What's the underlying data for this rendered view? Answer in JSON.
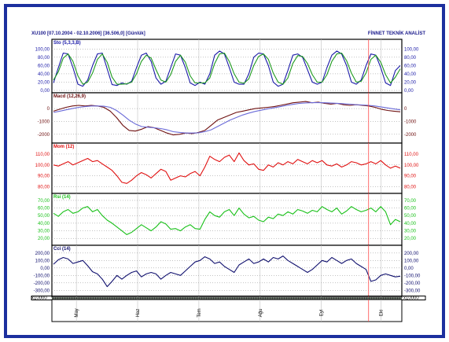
{
  "header": {
    "left": "XU100  [07.10.2004 - 02.10.2006]  [36.506,0]  [Günlük]",
    "right": "FİNNET TEKNİK ANALİST"
  },
  "colors": {
    "frame": "#1c2f9e",
    "sto_k": "#1a1aa8",
    "sto_d": "#1e9a1e",
    "macd": "#6e1010",
    "macd_signal": "#6a6ad8",
    "mom": "#e01010",
    "rsi": "#18c018",
    "cci": "#10106e",
    "vline": "#ff4a4a",
    "grid": "#c0c0c0"
  },
  "x_axis": {
    "months": [
      "May",
      "Haz",
      "Tem",
      "Ağu",
      "Eyl",
      "Eki"
    ],
    "month_positions": [
      0.07,
      0.245,
      0.42,
      0.595,
      0.77,
      0.94
    ],
    "marker_position": 0.905,
    "scale_label": "x10000"
  },
  "chart_data": [
    {
      "type": "line",
      "title": "Sto (5,3,3,B)",
      "ylim": [
        0,
        110
      ],
      "ticks": [
        {
          "v": 0,
          "l": "0,00"
        },
        {
          "v": 20,
          "l": "20,00"
        },
        {
          "v": 40,
          "l": "40,00"
        },
        {
          "v": 60,
          "l": "60,00"
        },
        {
          "v": 80,
          "l": "80,00"
        },
        {
          "v": 100,
          "l": "100,00"
        }
      ],
      "series": [
        {
          "key": "k",
          "color": "#1a1aa8",
          "values": [
            18,
            55,
            90,
            88,
            55,
            15,
            10,
            25,
            60,
            88,
            90,
            52,
            14,
            12,
            18,
            15,
            22,
            55,
            85,
            90,
            70,
            30,
            15,
            22,
            55,
            88,
            85,
            55,
            18,
            12,
            20,
            15,
            40,
            85,
            95,
            88,
            55,
            20,
            15,
            15,
            40,
            80,
            90,
            88,
            60,
            20,
            10,
            15,
            48,
            85,
            88,
            80,
            50,
            20,
            15,
            20,
            55,
            85,
            95,
            88,
            60,
            20,
            15,
            25,
            60,
            88,
            85,
            55,
            18,
            12,
            48,
            60
          ]
        },
        {
          "key": "d",
          "color": "#1e9a1e",
          "values": [
            25,
            45,
            78,
            88,
            70,
            35,
            15,
            20,
            42,
            75,
            88,
            68,
            32,
            15,
            15,
            16,
            20,
            40,
            70,
            85,
            78,
            50,
            25,
            20,
            38,
            70,
            85,
            68,
            35,
            18,
            18,
            18,
            30,
            65,
            88,
            90,
            70,
            40,
            20,
            17,
            28,
            60,
            82,
            88,
            75,
            42,
            20,
            15,
            30,
            65,
            84,
            82,
            65,
            38,
            20,
            20,
            38,
            70,
            88,
            90,
            72,
            42,
            20,
            22,
            42,
            75,
            85,
            68,
            38,
            18,
            32,
            52
          ]
        }
      ]
    },
    {
      "type": "line",
      "title": "Macd (12,26,9)",
      "ylim": [
        -2500,
        800
      ],
      "ticks": [
        {
          "v": 0,
          "l": "0"
        },
        {
          "v": -1000,
          "l": "-1000"
        },
        {
          "v": -2000,
          "l": "-2000"
        }
      ],
      "series": [
        {
          "key": "macd",
          "color": "#6e1010",
          "values": [
            -200,
            -50,
            100,
            200,
            250,
            200,
            250,
            200,
            100,
            -200,
            -700,
            -1300,
            -1700,
            -1750,
            -1600,
            -1400,
            -1500,
            -1700,
            -1900,
            -2050,
            -2000,
            -1900,
            -1950,
            -1850,
            -1700,
            -1300,
            -900,
            -700,
            -500,
            -300,
            -200,
            -100,
            0,
            50,
            100,
            150,
            250,
            350,
            450,
            500,
            550,
            450,
            500,
            400,
            350,
            400,
            300,
            250,
            300,
            250,
            200,
            100,
            -50,
            -150,
            -200,
            -250
          ]
        },
        {
          "key": "signal",
          "color": "#6a6ad8",
          "values": [
            -300,
            -200,
            -100,
            0,
            100,
            150,
            200,
            200,
            180,
            100,
            -150,
            -500,
            -900,
            -1200,
            -1400,
            -1450,
            -1500,
            -1550,
            -1650,
            -1800,
            -1850,
            -1900,
            -1900,
            -1880,
            -1800,
            -1650,
            -1400,
            -1150,
            -900,
            -700,
            -500,
            -350,
            -220,
            -120,
            -20,
            60,
            150,
            250,
            330,
            400,
            440,
            460,
            460,
            450,
            430,
            410,
            380,
            340,
            300,
            280,
            250,
            200,
            120,
            50,
            -30,
            -100
          ]
        }
      ]
    },
    {
      "type": "line",
      "title": "Mom (12)",
      "ylim": [
        76,
        115
      ],
      "ticks": [
        {
          "v": 80,
          "l": "80,00"
        },
        {
          "v": 90,
          "l": "90,00"
        },
        {
          "v": 100,
          "l": "100,00"
        },
        {
          "v": 110,
          "l": "110,00"
        }
      ],
      "series": [
        {
          "key": "mom",
          "color": "#e01010",
          "values": [
            100,
            99,
            101,
            103,
            100,
            102,
            104,
            106,
            103,
            104,
            101,
            98,
            95,
            90,
            84,
            83,
            86,
            90,
            93,
            91,
            88,
            92,
            96,
            94,
            86,
            88,
            90,
            89,
            92,
            94,
            90,
            98,
            108,
            105,
            103,
            107,
            109,
            103,
            111,
            104,
            100,
            101,
            96,
            95,
            100,
            98,
            102,
            100,
            103,
            101,
            105,
            103,
            101,
            104,
            102,
            104,
            100,
            99,
            101,
            98,
            100,
            103,
            102,
            100,
            101,
            103,
            101,
            104,
            100,
            97,
            99,
            97
          ]
        }
      ]
    },
    {
      "type": "line",
      "title": "Rsi (14)",
      "ylim": [
        14,
        72
      ],
      "ticks": [
        {
          "v": 20,
          "l": "20,00"
        },
        {
          "v": 30,
          "l": "30,00"
        },
        {
          "v": 40,
          "l": "40,00"
        },
        {
          "v": 50,
          "l": "50,00"
        },
        {
          "v": 60,
          "l": "60,00"
        },
        {
          "v": 70,
          "l": "70,00"
        }
      ],
      "series": [
        {
          "key": "rsi",
          "color": "#18c018",
          "values": [
            53,
            49,
            55,
            58,
            53,
            55,
            60,
            62,
            55,
            58,
            50,
            44,
            40,
            35,
            30,
            25,
            28,
            33,
            38,
            34,
            30,
            35,
            42,
            39,
            32,
            33,
            30,
            35,
            38,
            33,
            32,
            45,
            55,
            50,
            48,
            55,
            58,
            50,
            60,
            52,
            47,
            49,
            44,
            42,
            48,
            46,
            52,
            50,
            55,
            52,
            58,
            56,
            53,
            57,
            55,
            62,
            58,
            55,
            60,
            52,
            56,
            62,
            58,
            55,
            57,
            60,
            55,
            62,
            55,
            38,
            45,
            42
          ]
        }
      ]
    },
    {
      "type": "line",
      "title": "Cci (14)",
      "ylim": [
        -360,
        230
      ],
      "ticks": [
        {
          "v": -300,
          "l": "-300,00"
        },
        {
          "v": -200,
          "l": "-200,00"
        },
        {
          "v": -100,
          "l": "-100,00"
        },
        {
          "v": 0,
          "l": "0,00"
        },
        {
          "v": 100,
          "l": "100,00"
        },
        {
          "v": 200,
          "l": "200,00"
        }
      ],
      "series": [
        {
          "key": "cci",
          "color": "#10106e",
          "values": [
            50,
            110,
            140,
            120,
            60,
            80,
            100,
            30,
            -50,
            -80,
            -150,
            -250,
            -180,
            -100,
            -150,
            -100,
            -60,
            -40,
            -120,
            -80,
            -60,
            -80,
            -150,
            -100,
            -60,
            -80,
            -100,
            -40,
            20,
            80,
            100,
            150,
            120,
            60,
            80,
            20,
            -20,
            -60,
            40,
            80,
            120,
            60,
            80,
            120,
            80,
            140,
            120,
            160,
            100,
            60,
            20,
            -20,
            -60,
            -20,
            40,
            100,
            80,
            140,
            100,
            60,
            100,
            120,
            60,
            20,
            -20,
            -180,
            -160,
            -100,
            -80,
            -100,
            -120,
            -110
          ]
        }
      ]
    }
  ]
}
